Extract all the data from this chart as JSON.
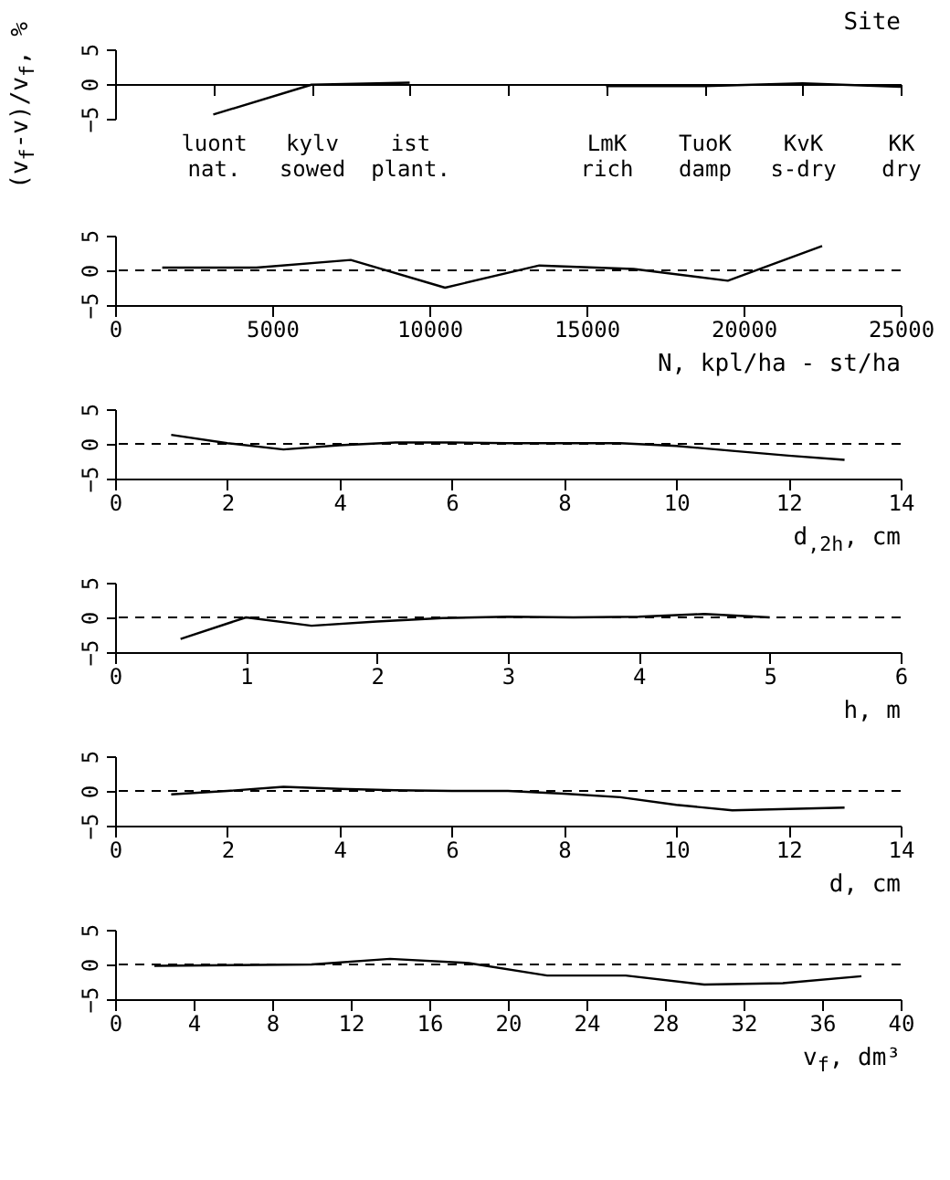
{
  "chart_data": [
    {
      "type": "line",
      "xlabel": "Site",
      "ylabel": "(v$_{f}$-v)/v$_{f}$, %",
      "categories": [
        "luont nat.",
        "kylv sowed",
        "ist plant.",
        null,
        "LmK rich",
        "TuoK damp",
        "KvK s-dry",
        "KK dry"
      ],
      "series": [
        {
          "color": "#000000",
          "values": [
            -4.4,
            -0.1,
            0.2,
            null,
            -0.3,
            -0.3,
            0.1,
            -0.4
          ]
        }
      ],
      "ylim": [
        -5,
        5
      ],
      "yticks": [
        -5,
        0,
        5
      ]
    },
    {
      "type": "line",
      "xlabel": "N, kpl/ha - st/ha",
      "x": [
        1500,
        4500,
        7500,
        10500,
        13500,
        16500,
        19500,
        22500
      ],
      "series": [
        {
          "color": "#000000",
          "values": [
            0.4,
            0.4,
            1.5,
            -2.5,
            0.7,
            0.2,
            -1.5,
            3.5
          ]
        }
      ],
      "xlim": [
        0,
        25000
      ],
      "xticks": [
        0,
        5000,
        10000,
        15000,
        20000,
        25000
      ],
      "ylim": [
        -5,
        5
      ],
      "yticks": [
        -5,
        0,
        5
      ],
      "ref_lines": [
        {
          "axis": "y",
          "value": 0,
          "line_style": "dashed"
        }
      ]
    },
    {
      "type": "line",
      "xlabel": "d$_{,2h}$, cm",
      "x": [
        1,
        2,
        3,
        4,
        5,
        6,
        7,
        8,
        9,
        10,
        11,
        12,
        13
      ],
      "series": [
        {
          "color": "#000000",
          "values": [
            1.3,
            0.1,
            -0.8,
            -0.2,
            0.2,
            0.2,
            0.1,
            0.1,
            0.1,
            -0.3,
            -1.0,
            -1.7,
            -2.3
          ]
        }
      ],
      "xlim": [
        0,
        14
      ],
      "xticks": [
        0,
        2,
        4,
        6,
        8,
        10,
        12,
        14
      ],
      "ylim": [
        -5,
        5
      ],
      "yticks": [
        -5,
        0,
        5
      ],
      "ref_lines": [
        {
          "axis": "y",
          "value": 0,
          "line_style": "dashed"
        }
      ]
    },
    {
      "type": "line",
      "xlabel": "h, m",
      "x": [
        0.5,
        1.0,
        1.5,
        2.0,
        2.5,
        3.0,
        3.5,
        4.0,
        4.5,
        5.0
      ],
      "series": [
        {
          "color": "#000000",
          "values": [
            -3.1,
            0,
            -1.2,
            -0.6,
            -0.1,
            0.1,
            0,
            0.1,
            0.5,
            0
          ]
        }
      ],
      "xlim": [
        0,
        6
      ],
      "xticks": [
        0,
        1,
        2,
        3,
        4,
        5,
        6
      ],
      "ylim": [
        -5,
        5
      ],
      "yticks": [
        -5,
        0,
        5
      ],
      "ref_lines": [
        {
          "axis": "y",
          "value": 0,
          "line_style": "dashed"
        }
      ]
    },
    {
      "type": "line",
      "xlabel": "d, cm",
      "x": [
        1,
        2,
        3,
        4,
        5,
        6,
        7,
        8,
        9,
        10,
        11,
        12,
        13
      ],
      "series": [
        {
          "color": "#000000",
          "values": [
            -0.5,
            0,
            0.6,
            0.3,
            0.1,
            0,
            0,
            -0.4,
            -0.9,
            -2.0,
            -2.8,
            -2.6,
            -2.4
          ]
        }
      ],
      "xlim": [
        0,
        14
      ],
      "xticks": [
        0,
        2,
        4,
        6,
        8,
        10,
        12,
        14
      ],
      "ylim": [
        -5,
        5
      ],
      "yticks": [
        -5,
        0,
        5
      ],
      "ref_lines": [
        {
          "axis": "y",
          "value": 0,
          "line_style": "dashed"
        }
      ]
    },
    {
      "type": "line",
      "xlabel": "v$_{f}$, dm³",
      "x": [
        2,
        6,
        10,
        14,
        18,
        22,
        26,
        30,
        34,
        38
      ],
      "series": [
        {
          "color": "#000000",
          "values": [
            -0.2,
            -0.1,
            0,
            0.8,
            0.2,
            -1.6,
            -1.6,
            -2.9,
            -2.7,
            -1.7
          ]
        }
      ],
      "xlim": [
        0,
        40
      ],
      "xticks": [
        0,
        4,
        8,
        12,
        16,
        20,
        24,
        28,
        32,
        36,
        40
      ],
      "ylim": [
        -5,
        5
      ],
      "yticks": [
        -5,
        0,
        5
      ],
      "ref_lines": [
        {
          "axis": "y",
          "value": 0,
          "line_style": "dashed"
        }
      ]
    }
  ]
}
